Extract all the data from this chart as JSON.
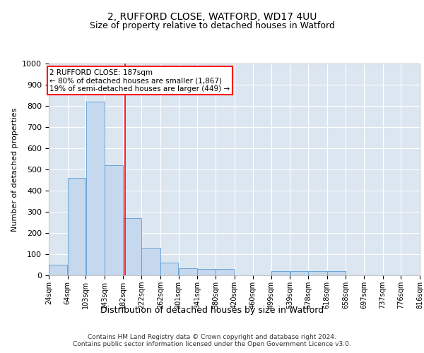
{
  "title1": "2, RUFFORD CLOSE, WATFORD, WD17 4UU",
  "title2": "Size of property relative to detached houses in Watford",
  "xlabel": "Distribution of detached houses by size in Watford",
  "ylabel": "Number of detached properties",
  "footer1": "Contains HM Land Registry data © Crown copyright and database right 2024.",
  "footer2": "Contains public sector information licensed under the Open Government Licence v3.0.",
  "annotation_line1": "2 RUFFORD CLOSE: 187sqm",
  "annotation_line2": "← 80% of detached houses are smaller (1,867)",
  "annotation_line3": "19% of semi-detached houses are larger (449) →",
  "bar_left_edges": [
    24,
    64,
    103,
    143,
    182,
    222,
    262,
    301,
    341,
    380,
    420,
    460,
    499,
    539,
    578,
    618,
    658,
    697,
    737,
    776
  ],
  "bar_widths": [
    40,
    39,
    40,
    39,
    40,
    40,
    39,
    40,
    39,
    40,
    40,
    39,
    40,
    39,
    40,
    40,
    39,
    40,
    39,
    40
  ],
  "bar_heights": [
    50,
    460,
    820,
    520,
    270,
    130,
    60,
    35,
    30,
    30,
    0,
    0,
    20,
    20,
    20,
    20,
    0,
    0,
    0,
    0
  ],
  "tick_labels": [
    "24sqm",
    "64sqm",
    "103sqm",
    "143sqm",
    "182sqm",
    "222sqm",
    "262sqm",
    "301sqm",
    "341sqm",
    "380sqm",
    "420sqm",
    "460sqm",
    "499sqm",
    "539sqm",
    "578sqm",
    "618sqm",
    "658sqm",
    "697sqm",
    "737sqm",
    "776sqm",
    "816sqm"
  ],
  "bar_color": "#c5d8ed",
  "bar_edge_color": "#5b9bd5",
  "bg_color": "#dce6f1",
  "red_line_x": 187,
  "ylim": [
    0,
    1000
  ],
  "yticks": [
    0,
    100,
    200,
    300,
    400,
    500,
    600,
    700,
    800,
    900,
    1000
  ],
  "grid_color": "#ffffff",
  "title1_fontsize": 10,
  "title2_fontsize": 9,
  "ylabel_fontsize": 8,
  "xlabel_fontsize": 9,
  "ytick_fontsize": 8,
  "xtick_fontsize": 7
}
